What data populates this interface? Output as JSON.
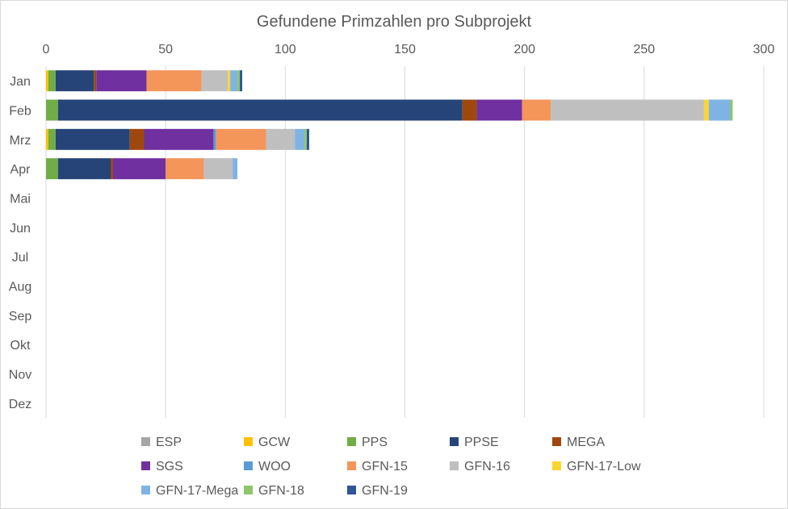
{
  "chart_data": {
    "type": "bar",
    "orientation": "horizontal",
    "stacked": true,
    "title": "Gefundene Primzahlen pro Subprojekt",
    "xlabel": "",
    "ylabel": "",
    "xlim": [
      0,
      300
    ],
    "xticks": [
      0,
      50,
      100,
      150,
      200,
      250,
      300
    ],
    "grid": true,
    "legend_position": "bottom",
    "categories": [
      "Jan",
      "Feb",
      "Mrz",
      "Apr",
      "Mai",
      "Jun",
      "Jul",
      "Aug",
      "Sep",
      "Okt",
      "Nov",
      "Dez"
    ],
    "series": [
      {
        "name": "ESP",
        "color": "#a5a5a5",
        "values": [
          0,
          0,
          0,
          0,
          0,
          0,
          0,
          0,
          0,
          0,
          0,
          0
        ]
      },
      {
        "name": "GCW",
        "color": "#ffc000",
        "values": [
          1,
          0,
          1,
          0,
          0,
          0,
          0,
          0,
          0,
          0,
          0,
          0
        ]
      },
      {
        "name": "PPS",
        "color": "#70ad47",
        "values": [
          3,
          5,
          3,
          5,
          0,
          0,
          0,
          0,
          0,
          0,
          0,
          0
        ]
      },
      {
        "name": "PPSE",
        "color": "#264478",
        "values": [
          16,
          169,
          31,
          22,
          0,
          0,
          0,
          0,
          0,
          0,
          0,
          0
        ]
      },
      {
        "name": "MEGA",
        "color": "#9e480e",
        "values": [
          1,
          6,
          6,
          1,
          0,
          0,
          0,
          0,
          0,
          0,
          0,
          0
        ]
      },
      {
        "name": "SGS",
        "color": "#7030a0",
        "values": [
          21,
          19,
          29,
          22,
          0,
          0,
          0,
          0,
          0,
          0,
          0,
          0
        ]
      },
      {
        "name": "WOO",
        "color": "#5b9bd5",
        "values": [
          0,
          0,
          1,
          0,
          0,
          0,
          0,
          0,
          0,
          0,
          0,
          0
        ]
      },
      {
        "name": "GFN-15",
        "color": "#f4955a",
        "values": [
          23,
          12,
          21,
          16,
          0,
          0,
          0,
          0,
          0,
          0,
          0,
          0
        ]
      },
      {
        "name": "GFN-16",
        "color": "#bfbfbf",
        "values": [
          11,
          64,
          12,
          12,
          0,
          0,
          0,
          0,
          0,
          0,
          0,
          0
        ]
      },
      {
        "name": "GFN-17-Low",
        "color": "#ffd430",
        "values": [
          1,
          2,
          0,
          0,
          0,
          0,
          0,
          0,
          0,
          0,
          0,
          0
        ]
      },
      {
        "name": "GFN-17-Mega",
        "color": "#7fb3e3",
        "values": [
          3,
          9,
          4,
          2,
          0,
          0,
          0,
          0,
          0,
          0,
          0,
          0
        ]
      },
      {
        "name": "GFN-18",
        "color": "#8fc56a",
        "values": [
          1,
          1,
          1,
          0,
          0,
          0,
          0,
          0,
          0,
          0,
          0,
          0
        ]
      },
      {
        "name": "GFN-19",
        "color": "#2e5597",
        "values": [
          1,
          0,
          1,
          0,
          0,
          0,
          0,
          0,
          0,
          0,
          0,
          0
        ]
      }
    ]
  }
}
